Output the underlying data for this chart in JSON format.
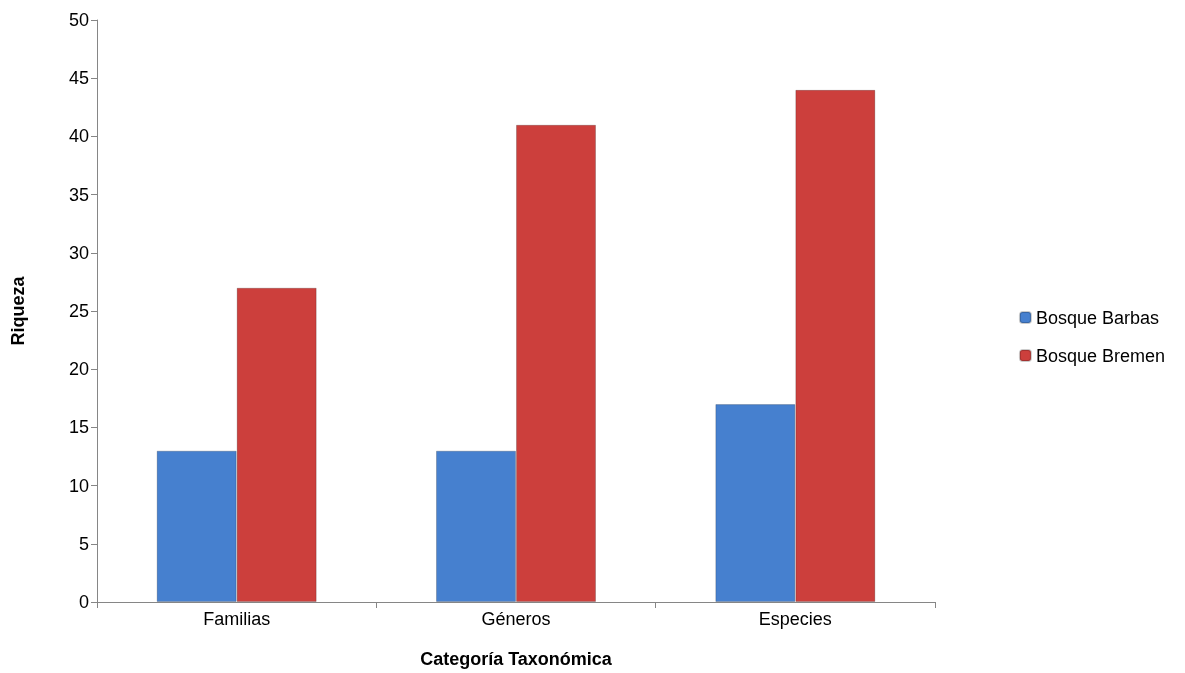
{
  "chart_data": {
    "type": "bar",
    "xlabel": "Categoría Taxonómica",
    "ylabel": "Riqueza",
    "categories": [
      "Familias",
      "Géneros",
      "Especies"
    ],
    "series": [
      {
        "name": "Bosque Barbas",
        "color": "#4680cf",
        "values": [
          13,
          13,
          17
        ]
      },
      {
        "name": "Bosque Bremen",
        "color": "#cc3f3c",
        "values": [
          27,
          41,
          44
        ]
      }
    ],
    "ylim": [
      0,
      50
    ],
    "yticks": [
      0,
      5,
      10,
      15,
      20,
      25,
      30,
      35,
      40,
      45,
      50
    ],
    "grid": false,
    "legend": "right"
  }
}
